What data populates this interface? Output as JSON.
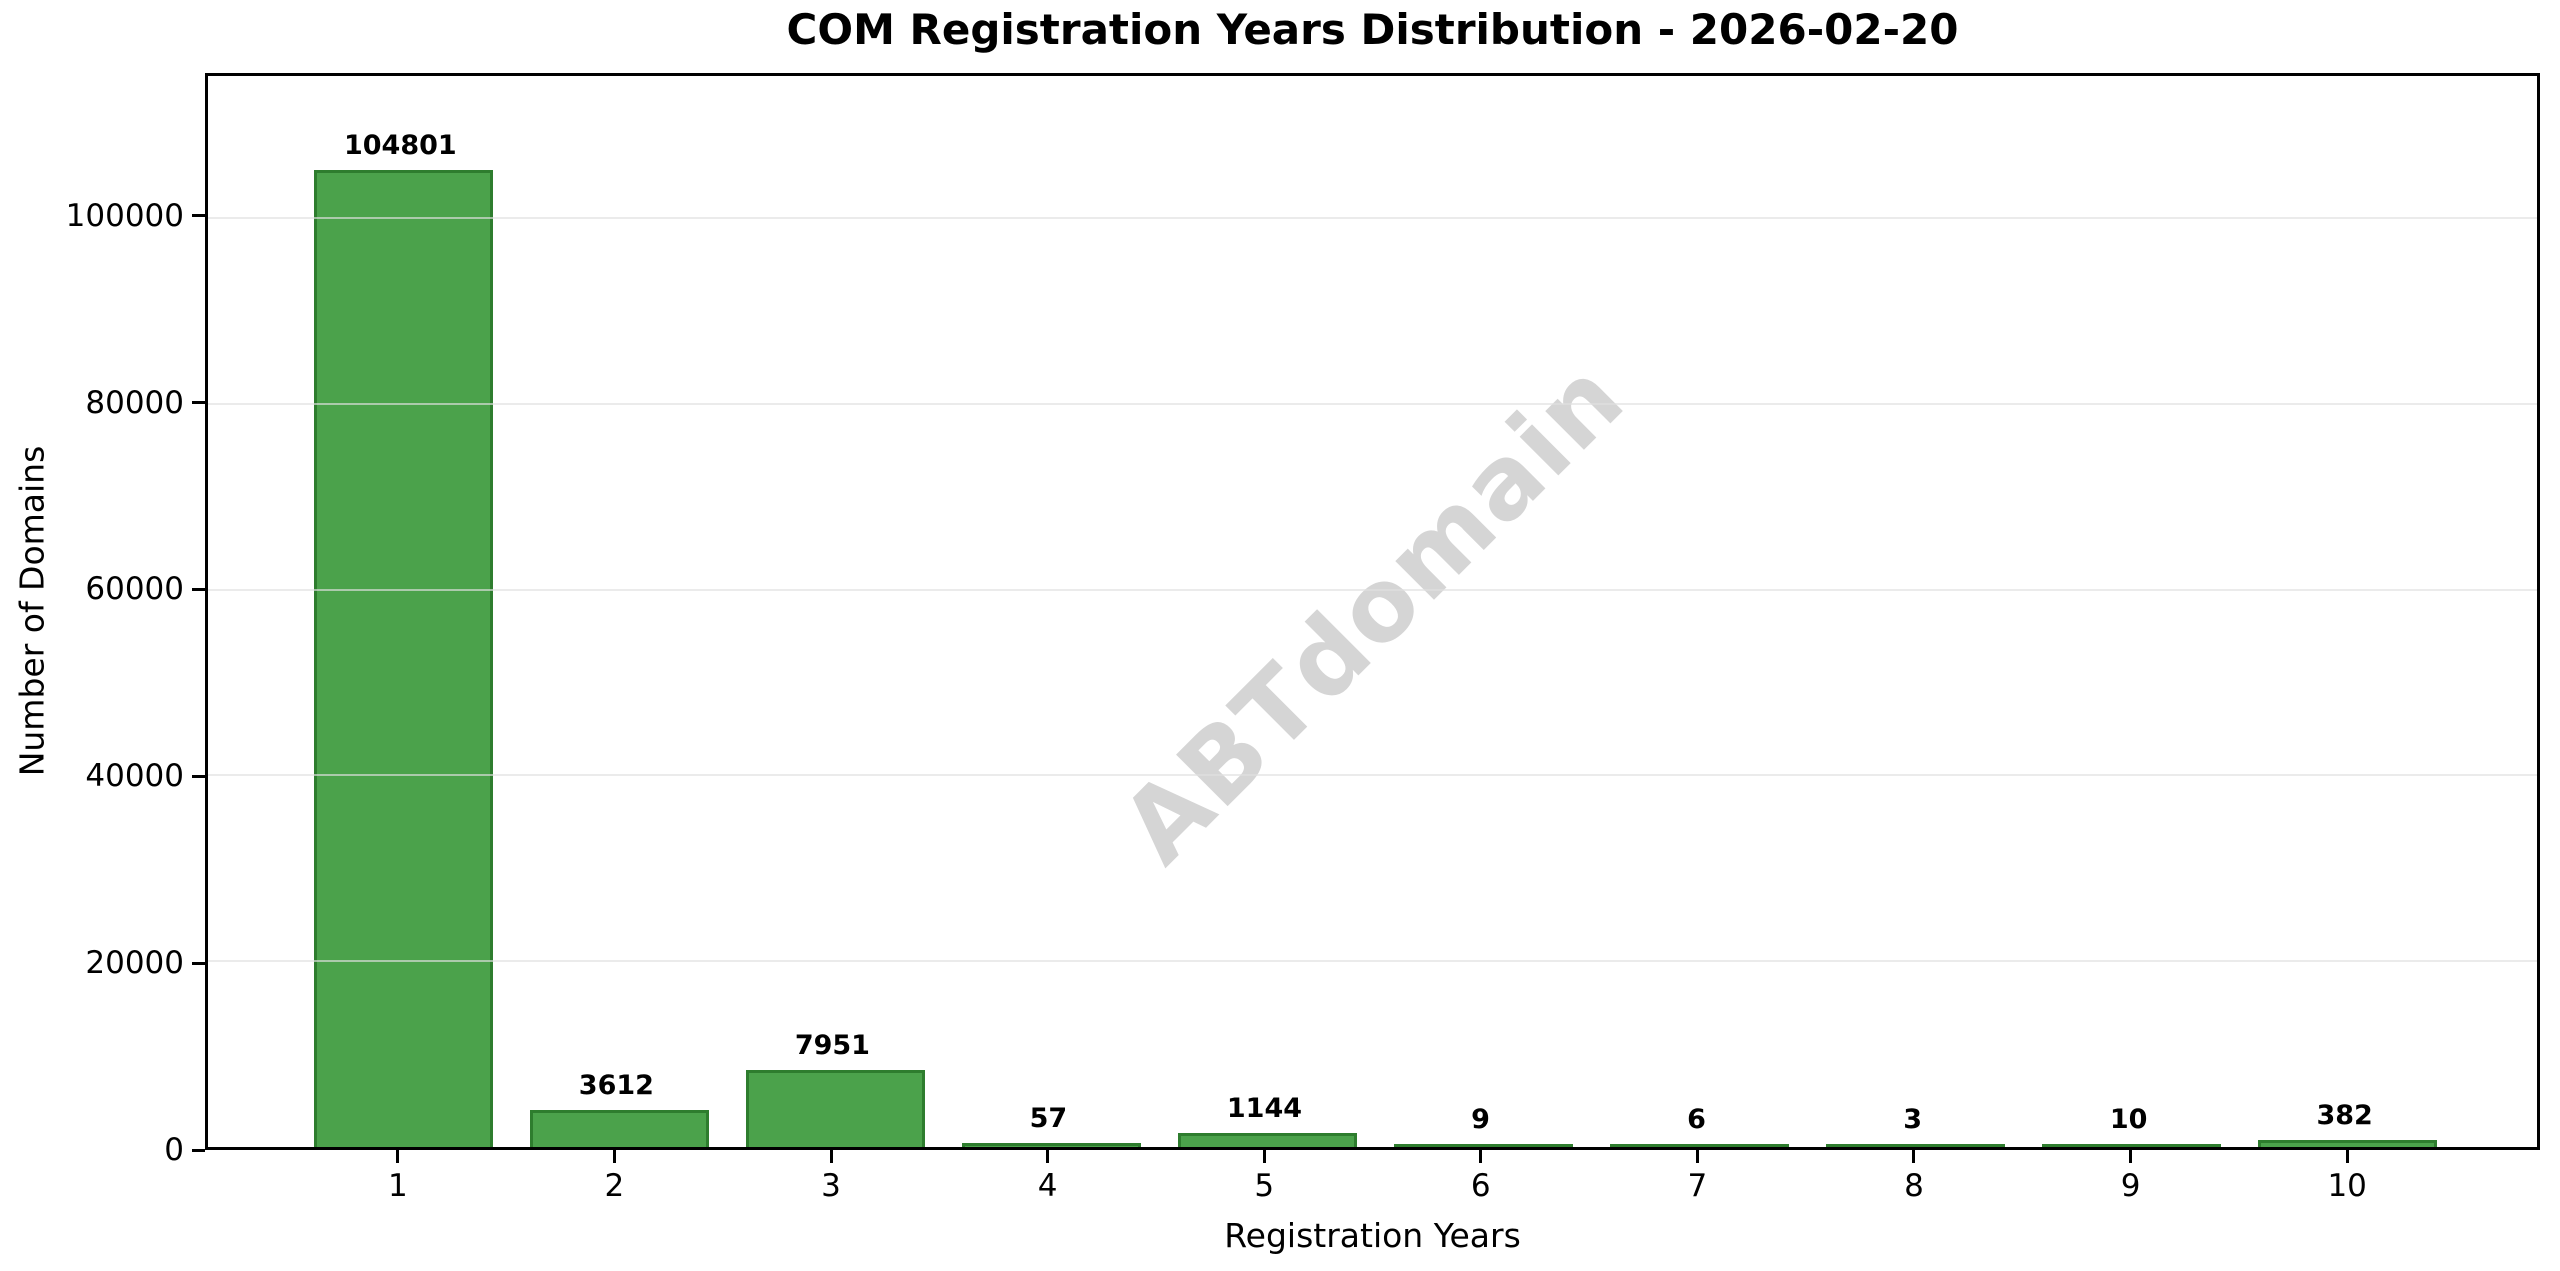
{
  "figure": {
    "title": "COM Registration Years Distribution - 2026-02-20",
    "watermark": "ABTdomain"
  },
  "chart_data": {
    "type": "bar",
    "title": "COM Registration Years Distribution - 2026-02-20",
    "categories": [
      "1",
      "2",
      "3",
      "4",
      "5",
      "6",
      "7",
      "8",
      "9",
      "10"
    ],
    "values": [
      104801,
      3612,
      7951,
      57,
      1144,
      9,
      6,
      3,
      10,
      382
    ],
    "bar_labels": [
      "104801",
      "3612",
      "7951",
      "57",
      "1144",
      "9",
      "6",
      "3",
      "10",
      "382"
    ],
    "xlabel": "Registration Years",
    "ylabel": "Number of Domains",
    "yticks": [
      0,
      20000,
      40000,
      60000,
      80000,
      100000
    ],
    "ytick_labels": [
      "0",
      "20000",
      "40000",
      "60000",
      "80000",
      "100000"
    ],
    "ylim": [
      0,
      115281
    ],
    "grid": "horizontal",
    "legend_position": "none",
    "watermark": "ABTdomain",
    "colors": {
      "bar_fill": "#4ba24b",
      "bar_edge": "#2e7d2e",
      "grid": "#e7e7e7",
      "watermark": "#d5d5d5",
      "text": "#000000",
      "background": "#ffffff"
    }
  }
}
